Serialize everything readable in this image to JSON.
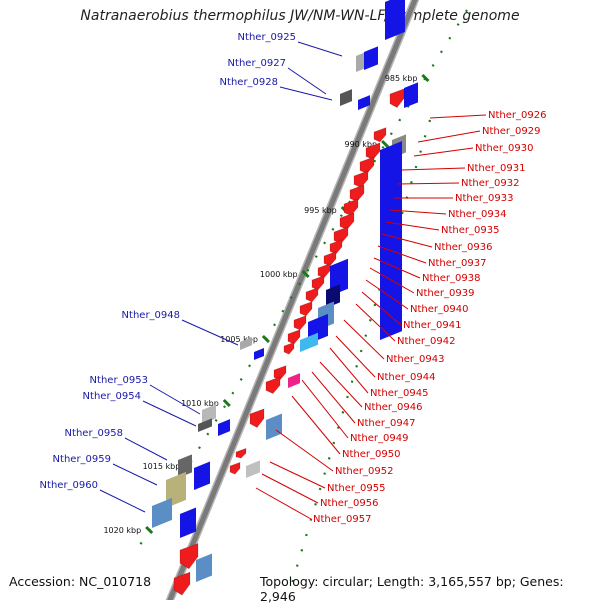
{
  "title": "Natranaerobius thermophilus JW/NM-WN-LF, complete genome",
  "footer": {
    "accession": "Accession: NC_010718",
    "summary": "Topology: circular; Length: 3,165,557 bp; Genes: 2,946"
  },
  "colors": {
    "backbone": "#8c8c8c",
    "tick": "#1a7a1a",
    "label_left": "#1a1aa8",
    "label_right": "#d40000",
    "forward_gene": "#1414e6",
    "reverse_gene": "#ee1c1c"
  },
  "ticks": [
    {
      "label": "985 kbp"
    },
    {
      "label": "990 kbp"
    },
    {
      "label": "995 kbp"
    },
    {
      "label": "1000 kbp"
    },
    {
      "label": "1005 kbp"
    },
    {
      "label": "1010 kbp"
    },
    {
      "label": "1015 kbp"
    },
    {
      "label": "1020 kbp"
    }
  ],
  "labels_left": [
    "Nther_0925",
    "Nther_0927",
    "Nther_0928",
    "Nther_0948",
    "Nther_0953",
    "Nther_0954",
    "Nther_0958",
    "Nther_0959",
    "Nther_0960"
  ],
  "labels_right": [
    "Nther_0926",
    "Nther_0929",
    "Nther_0930",
    "Nther_0931",
    "Nther_0932",
    "Nther_0933",
    "Nther_0934",
    "Nther_0935",
    "Nther_0936",
    "Nther_0937",
    "Nther_0938",
    "Nther_0939",
    "Nther_0940",
    "Nther_0941",
    "Nther_0942",
    "Nther_0943",
    "Nther_0944",
    "Nther_0945",
    "Nther_0946",
    "Nther_0947",
    "Nther_0949",
    "Nther_0950",
    "Nther_0952",
    "Nther_0955",
    "Nther_0956",
    "Nther_0957"
  ]
}
